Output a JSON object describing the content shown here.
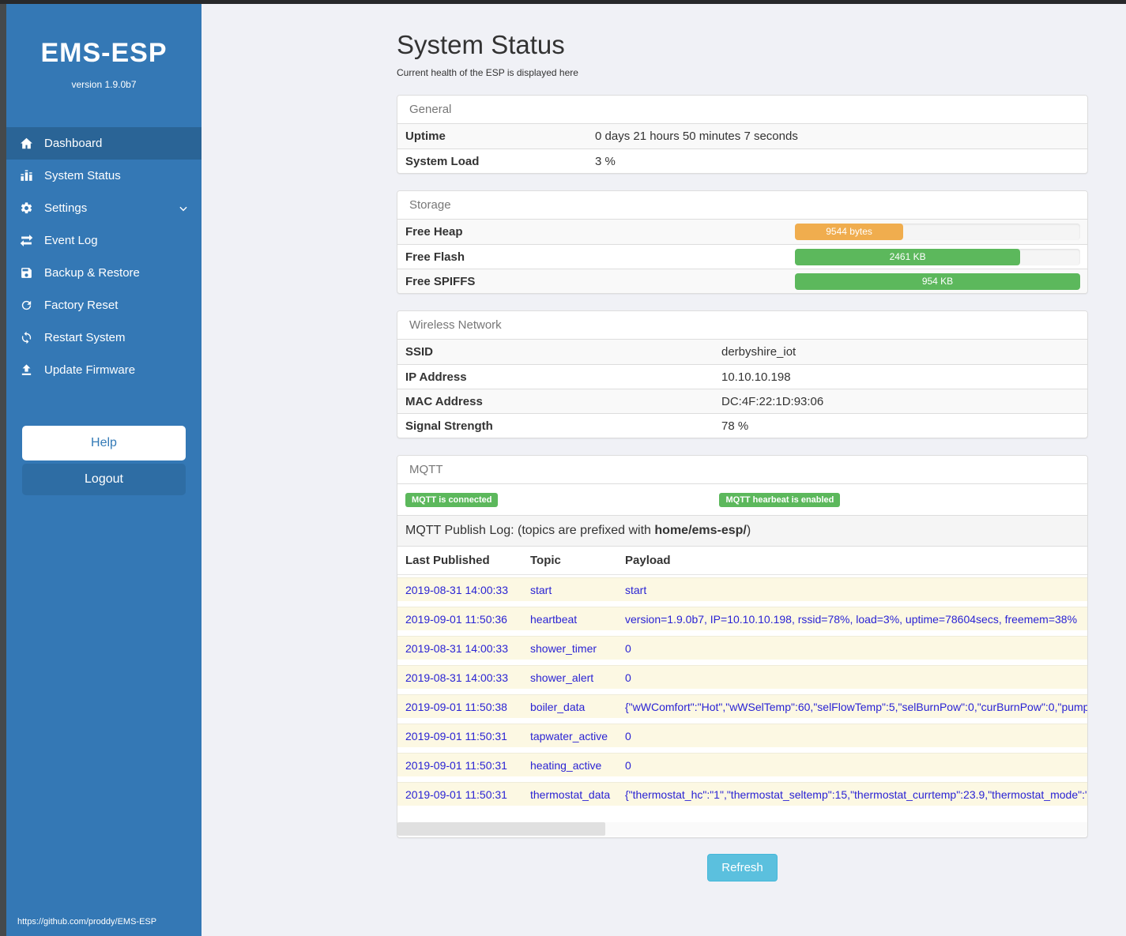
{
  "app": {
    "brand": "EMS-ESP",
    "version": "version 1.9.0b7",
    "footer_link": "https://github.com/proddy/EMS-ESP"
  },
  "colors": {
    "sidebar": "#3478b5",
    "sidebar_active": "#2a6496",
    "success_green": "#5cb85c",
    "warning_orange": "#f0ad4e",
    "info_blue": "#5bc0de",
    "link_blue": "#2a23d4",
    "row_highlight": "#fcf8e3"
  },
  "sidebar": {
    "items": [
      {
        "label": "Dashboard",
        "icon": "home-icon",
        "active": true
      },
      {
        "label": "System Status",
        "icon": "status-icon",
        "active": false
      },
      {
        "label": "Settings",
        "icon": "gear-icon",
        "active": false,
        "has_submenu": true
      },
      {
        "label": "Event Log",
        "icon": "exchange-icon",
        "active": false
      },
      {
        "label": "Backup & Restore",
        "icon": "save-icon",
        "active": false
      },
      {
        "label": "Factory Reset",
        "icon": "reset-icon",
        "active": false
      },
      {
        "label": "Restart System",
        "icon": "sync-icon",
        "active": false
      },
      {
        "label": "Update Firmware",
        "icon": "upload-icon",
        "active": false
      }
    ],
    "help_label": "Help",
    "logout_label": "Logout"
  },
  "header": {
    "title": "System Status",
    "subtitle": "Current health of the ESP is displayed here"
  },
  "panels": {
    "general": {
      "title": "General",
      "rows": [
        {
          "label": "Uptime",
          "value": "0 days 21 hours 50 minutes 7 seconds"
        },
        {
          "label": "System Load",
          "value": "3 %"
        }
      ]
    },
    "storage": {
      "title": "Storage",
      "rows": [
        {
          "label": "Free Heap",
          "bar": {
            "label": "9544 bytes",
            "percent": 38,
            "color": "#f0ad4e"
          }
        },
        {
          "label": "Free Flash",
          "bar": {
            "label": "2461 KB",
            "percent": 79,
            "color": "#5cb85c"
          }
        },
        {
          "label": "Free SPIFFS",
          "bar": {
            "label": "954 KB",
            "percent": 100,
            "color": "#5cb85c"
          }
        }
      ]
    },
    "wireless": {
      "title": "Wireless Network",
      "rows": [
        {
          "label": "SSID",
          "value": "derbyshire_iot"
        },
        {
          "label": "IP Address",
          "value": "10.10.10.198"
        },
        {
          "label": "MAC Address",
          "value": "DC:4F:22:1D:93:06"
        },
        {
          "label": "Signal Strength",
          "value": "78 %"
        }
      ]
    },
    "mqtt": {
      "title": "MQTT",
      "badges": [
        {
          "label": "MQTT is connected",
          "color": "#5cb85c"
        },
        {
          "label": "MQTT hearbeat is enabled",
          "color": "#5cb85c"
        }
      ],
      "publish_log": {
        "prefix": "MQTT Publish Log: (topics are prefixed with ",
        "bold": "home/ems-esp/",
        "suffix": ")"
      },
      "table": {
        "headers": [
          "Last Published",
          "Topic",
          "Payload"
        ],
        "rows": [
          {
            "time": "2019-08-31 14:00:33",
            "topic": "start",
            "payload": "start"
          },
          {
            "time": "2019-09-01 11:50:36",
            "topic": "heartbeat",
            "payload": "version=1.9.0b7, IP=10.10.10.198, rssid=78%, load=3%, uptime=78604secs, freemem=38%"
          },
          {
            "time": "2019-08-31 14:00:33",
            "topic": "shower_timer",
            "payload": "0"
          },
          {
            "time": "2019-08-31 14:00:33",
            "topic": "shower_alert",
            "payload": "0"
          },
          {
            "time": "2019-09-01 11:50:38",
            "topic": "boiler_data",
            "payload": "{\"wWComfort\":\"Hot\",\"wWSelTemp\":60,\"selFlowTemp\":5,\"selBurnPow\":0,\"curBurnPow\":0,\"pump"
          },
          {
            "time": "2019-09-01 11:50:31",
            "topic": "tapwater_active",
            "payload": "0"
          },
          {
            "time": "2019-09-01 11:50:31",
            "topic": "heating_active",
            "payload": "0"
          },
          {
            "time": "2019-09-01 11:50:31",
            "topic": "thermostat_data",
            "payload": "{\"thermostat_hc\":\"1\",\"thermostat_seltemp\":15,\"thermostat_currtemp\":23.9,\"thermostat_mode\":\""
          }
        ]
      }
    }
  },
  "actions": {
    "refresh_label": "Refresh"
  }
}
